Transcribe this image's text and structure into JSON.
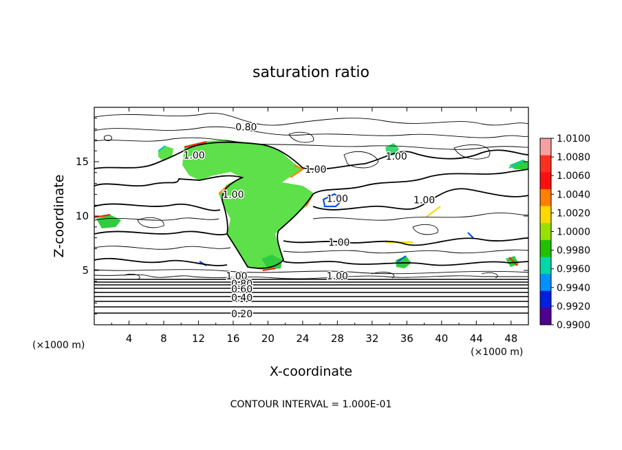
{
  "chart_data": {
    "type": "heatmap",
    "title": "saturation ratio",
    "xlabel": "X-coordinate",
    "ylabel": "Z-coordinate",
    "x_unit_label": "(×1000 m)",
    "y_unit_label": "(×1000 m)",
    "xlim": [
      0,
      50
    ],
    "ylim": [
      0,
      20
    ],
    "x_ticks": [
      4,
      8,
      12,
      16,
      20,
      24,
      28,
      32,
      36,
      40,
      44,
      48
    ],
    "y_ticks": [
      5,
      10,
      15
    ],
    "footer": "CONTOUR INTERVAL = 1.000E-01",
    "colorbar": {
      "levels": [
        "1.0100",
        "1.0080",
        "1.0060",
        "1.0040",
        "1.0020",
        "1.0000",
        "0.9980",
        "0.9960",
        "0.9940",
        "0.9920",
        "0.9900"
      ],
      "colors": [
        "#f4a0a0",
        "#ff3020",
        "#ff1010",
        "#ff8000",
        "#ffd800",
        "#98e000",
        "#22c000",
        "#00d8a8",
        "#0090ff",
        "#0020e0",
        "#500090"
      ]
    },
    "contour_labels": [
      {
        "text": "0.80",
        "x": 17.5,
        "y": 18.2
      },
      {
        "text": "1.00",
        "x": 11.5,
        "y": 15.6
      },
      {
        "text": "1.00",
        "x": 25.5,
        "y": 14.3
      },
      {
        "text": "1.00",
        "x": 34.8,
        "y": 15.5
      },
      {
        "text": "1.00",
        "x": 16.0,
        "y": 12.0
      },
      {
        "text": "1.00",
        "x": 28.0,
        "y": 11.6
      },
      {
        "text": "1.00",
        "x": 38.0,
        "y": 11.5
      },
      {
        "text": "1.00",
        "x": 28.2,
        "y": 7.6
      },
      {
        "text": "1.00",
        "x": 28.0,
        "y": 4.5
      },
      {
        "text": "1.00",
        "x": 16.4,
        "y": 4.5
      },
      {
        "text": "0.80",
        "x": 17.0,
        "y": 3.8
      },
      {
        "text": "0.60",
        "x": 17.0,
        "y": 3.3
      },
      {
        "text": "0.40",
        "x": 17.0,
        "y": 2.5
      },
      {
        "text": "0.20",
        "x": 17.0,
        "y": 1.0
      }
    ]
  }
}
